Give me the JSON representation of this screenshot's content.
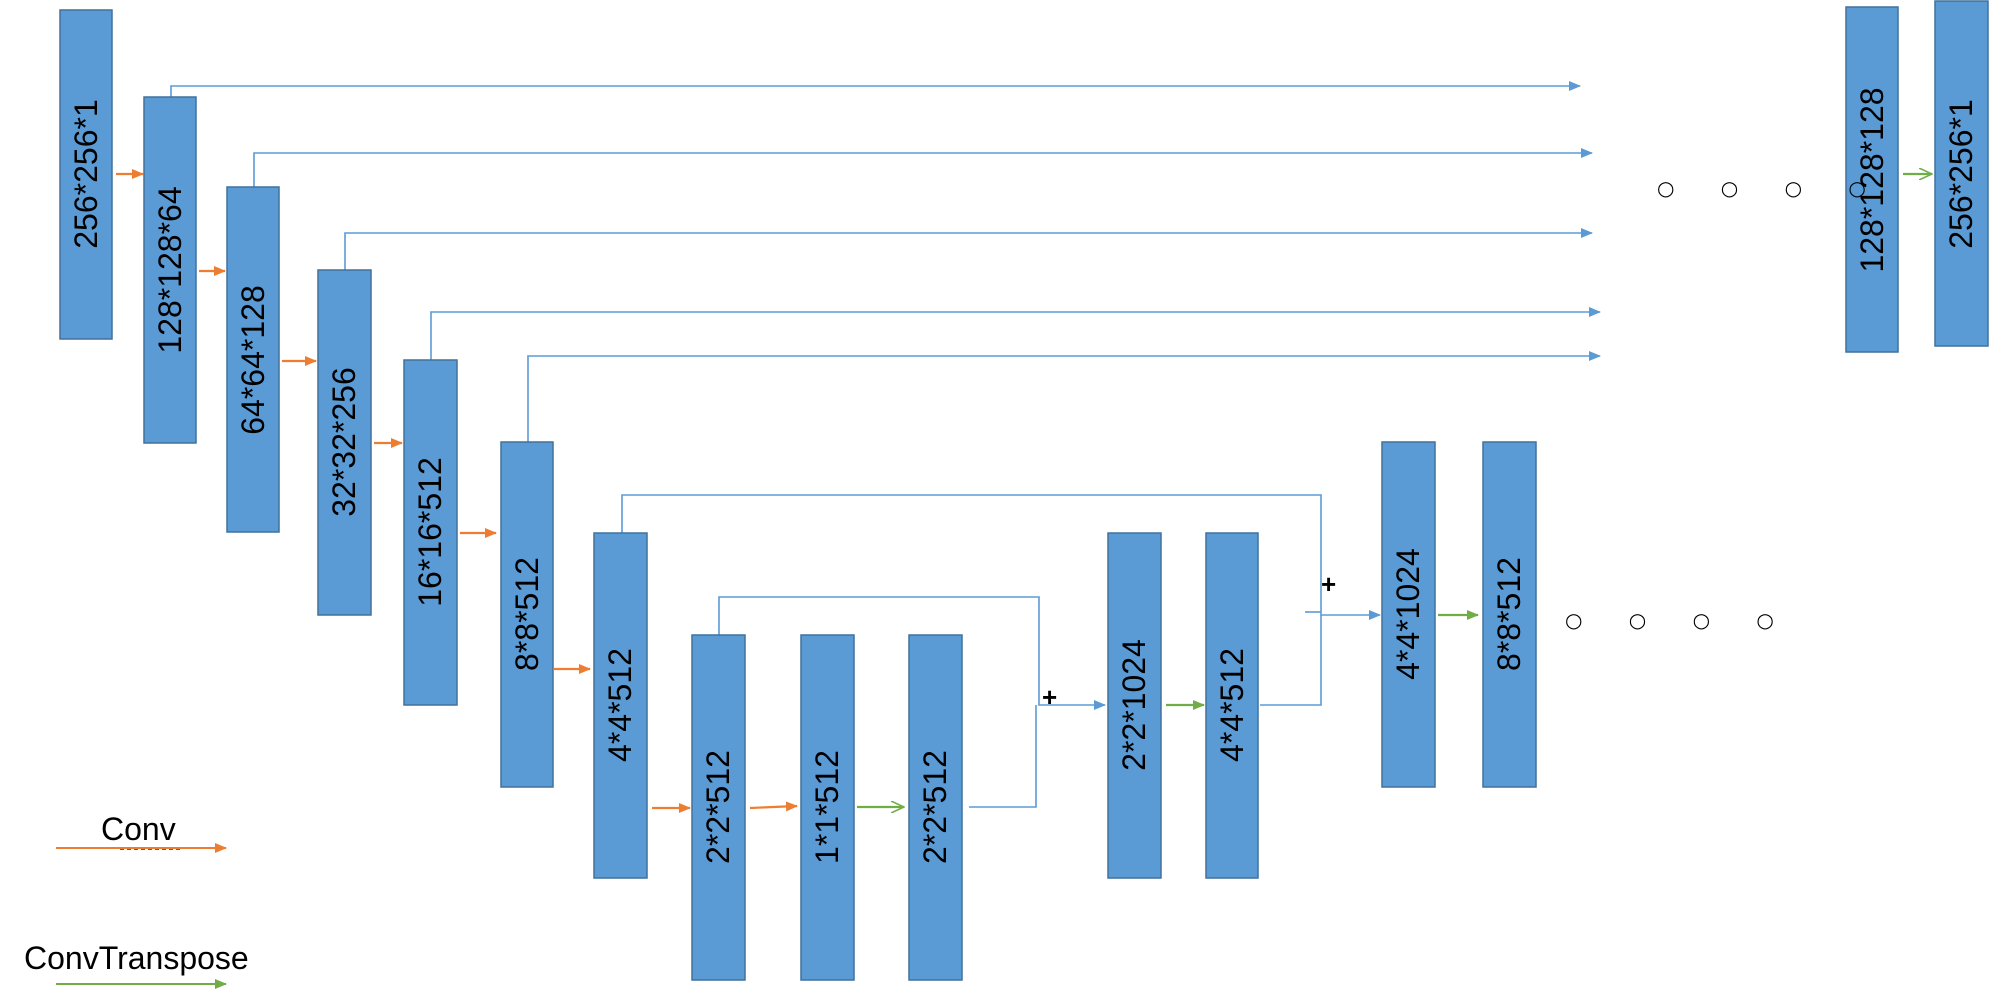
{
  "blocks": [
    {
      "id": "enc1",
      "label": "256*256*1"
    },
    {
      "id": "enc2",
      "label": "128*128*64"
    },
    {
      "id": "enc3",
      "label": "64*64*128"
    },
    {
      "id": "enc4",
      "label": "32*32*256"
    },
    {
      "id": "enc5",
      "label": "16*16*512"
    },
    {
      "id": "enc6",
      "label": "8*8*512"
    },
    {
      "id": "enc7",
      "label": "4*4*512"
    },
    {
      "id": "enc8",
      "label": "2*2*512"
    },
    {
      "id": "bottleneck",
      "label": "1*1*512"
    },
    {
      "id": "dec1",
      "label": "2*2*512"
    },
    {
      "id": "dec2",
      "label": "2*2*1024"
    },
    {
      "id": "dec3",
      "label": "4*4*512"
    },
    {
      "id": "dec4",
      "label": "4*4*1024"
    },
    {
      "id": "dec5",
      "label": "8*8*512"
    },
    {
      "id": "out1",
      "label": "128*128*128"
    },
    {
      "id": "out2",
      "label": "256*256*1"
    }
  ],
  "plus_signs": [
    "+",
    "+"
  ],
  "ellipsis_top": "○ ○ ○ ○",
  "ellipsis_mid": "○ ○ ○ ○",
  "legend": {
    "conv_label": "Conv",
    "convtranspose_label": "ConvTranspose"
  },
  "colors": {
    "block_fill": "#5b9bd5",
    "block_stroke": "#41719c",
    "skip_line": "#5b9bd5",
    "conv_arrow": "#ed7d31",
    "convtranspose_arrow": "#70ad47"
  }
}
